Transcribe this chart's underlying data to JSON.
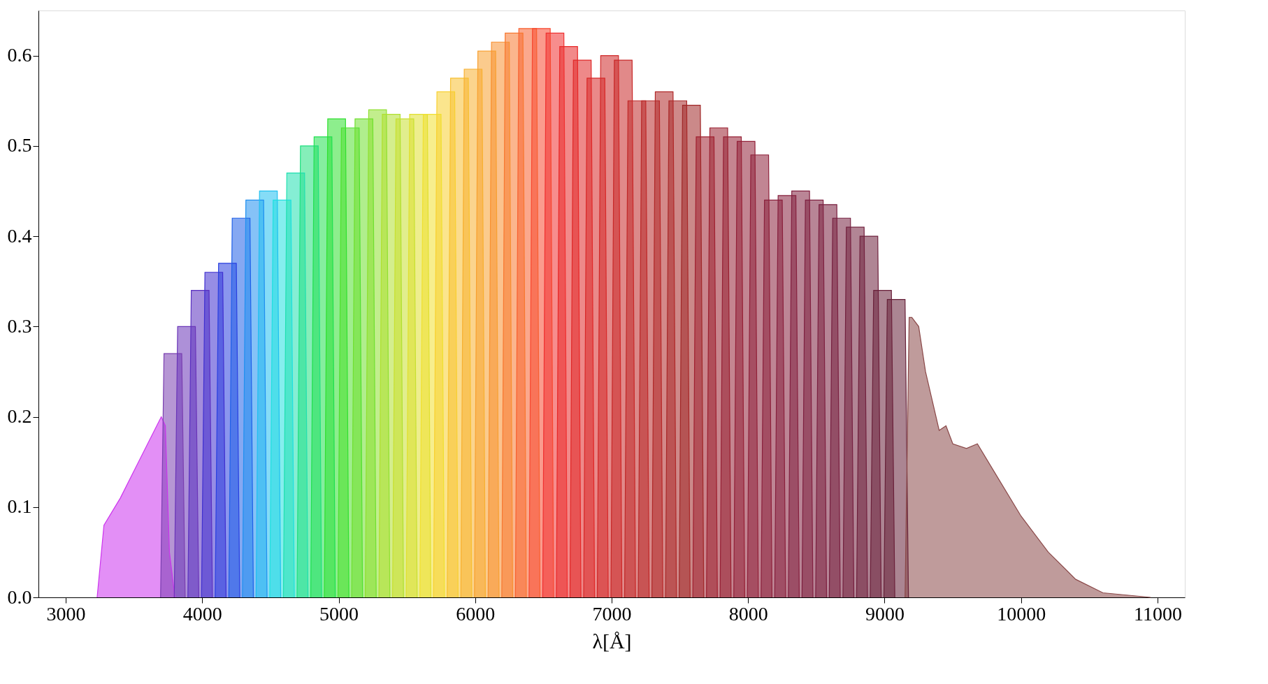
{
  "chart_data": {
    "type": "area",
    "xlabel": "λ[Å]",
    "xlim": [
      2800,
      11200
    ],
    "ylim": [
      0,
      0.65
    ],
    "xticks": [
      3000,
      4000,
      5000,
      6000,
      7000,
      8000,
      9000,
      10000,
      11000
    ],
    "yticks": [
      {
        "value": 0,
        "label": "0.0"
      },
      0.1,
      0.2,
      0.3,
      0.4,
      0.5,
      0.6
    ],
    "grid": false,
    "legend": false,
    "series": [
      {
        "color": "#cc33ee",
        "x": [
          3230,
          3280,
          3400,
          3500,
          3600,
          3700,
          3730,
          3760,
          3800
        ],
        "values": [
          0,
          0.08,
          0.11,
          0.14,
          0.17,
          0.2,
          0.19,
          0.05,
          0
        ]
      },
      {
        "color": "#7a3fb0",
        "x": [
          3695,
          3720,
          3850,
          3875
        ],
        "values": [
          0,
          0.27,
          0.27,
          0
        ]
      },
      {
        "color": "#6a35b8",
        "x": [
          3795,
          3820,
          3950,
          3975
        ],
        "values": [
          0,
          0.3,
          0.3,
          0
        ]
      },
      {
        "color": "#5a30c0",
        "x": [
          3895,
          3920,
          4050,
          4075
        ],
        "values": [
          0,
          0.34,
          0.34,
          0
        ]
      },
      {
        "color": "#4030d0",
        "x": [
          3995,
          4020,
          4150,
          4175
        ],
        "values": [
          0,
          0.36,
          0.36,
          0
        ]
      },
      {
        "color": "#2a40e0",
        "x": [
          4095,
          4120,
          4250,
          4275
        ],
        "values": [
          0,
          0.37,
          0.37,
          0
        ]
      },
      {
        "color": "#2060e8",
        "x": [
          4195,
          4220,
          4350,
          4375
        ],
        "values": [
          0,
          0.42,
          0.42,
          0
        ]
      },
      {
        "color": "#2090f0",
        "x": [
          4295,
          4320,
          4450,
          4475
        ],
        "values": [
          0,
          0.44,
          0.44,
          0
        ]
      },
      {
        "color": "#20c0f0",
        "x": [
          4395,
          4420,
          4550,
          4575
        ],
        "values": [
          0,
          0.45,
          0.45,
          0
        ]
      },
      {
        "color": "#20e0e0",
        "x": [
          4495,
          4520,
          4650,
          4675
        ],
        "values": [
          0,
          0.44,
          0.44,
          0
        ]
      },
      {
        "color": "#20e0b0",
        "x": [
          4595,
          4620,
          4750,
          4775
        ],
        "values": [
          0,
          0.47,
          0.47,
          0
        ]
      },
      {
        "color": "#20e080",
        "x": [
          4695,
          4720,
          4850,
          4875
        ],
        "values": [
          0,
          0.5,
          0.5,
          0
        ]
      },
      {
        "color": "#20e050",
        "x": [
          4795,
          4820,
          4950,
          4975
        ],
        "values": [
          0,
          0.51,
          0.51,
          0
        ]
      },
      {
        "color": "#30e030",
        "x": [
          4895,
          4920,
          5050,
          5075
        ],
        "values": [
          0,
          0.53,
          0.53,
          0
        ]
      },
      {
        "color": "#50e030",
        "x": [
          4995,
          5020,
          5150,
          5175
        ],
        "values": [
          0,
          0.52,
          0.52,
          0
        ]
      },
      {
        "color": "#70e030",
        "x": [
          5095,
          5120,
          5250,
          5275
        ],
        "values": [
          0,
          0.53,
          0.53,
          0
        ]
      },
      {
        "color": "#90e030",
        "x": [
          5195,
          5220,
          5350,
          5375
        ],
        "values": [
          0,
          0.54,
          0.54,
          0
        ]
      },
      {
        "color": "#b0e030",
        "x": [
          5295,
          5320,
          5450,
          5475
        ],
        "values": [
          0,
          0.535,
          0.535,
          0
        ]
      },
      {
        "color": "#c8e030",
        "x": [
          5395,
          5420,
          5550,
          5575
        ],
        "values": [
          0,
          0.53,
          0.53,
          0
        ]
      },
      {
        "color": "#e0e030",
        "x": [
          5495,
          5520,
          5650,
          5675
        ],
        "values": [
          0,
          0.535,
          0.535,
          0
        ]
      },
      {
        "color": "#f0e030",
        "x": [
          5595,
          5620,
          5750,
          5775
        ],
        "values": [
          0,
          0.535,
          0.535,
          0
        ]
      },
      {
        "color": "#f8d030",
        "x": [
          5695,
          5720,
          5850,
          5875
        ],
        "values": [
          0,
          0.56,
          0.56,
          0
        ]
      },
      {
        "color": "#f8c030",
        "x": [
          5795,
          5820,
          5950,
          5975
        ],
        "values": [
          0,
          0.575,
          0.575,
          0
        ]
      },
      {
        "color": "#f8b030",
        "x": [
          5895,
          5920,
          6050,
          6075
        ],
        "values": [
          0,
          0.585,
          0.585,
          0
        ]
      },
      {
        "color": "#f8a030",
        "x": [
          5995,
          6020,
          6150,
          6175
        ],
        "values": [
          0,
          0.605,
          0.605,
          0
        ]
      },
      {
        "color": "#f89030",
        "x": [
          6095,
          6120,
          6250,
          6275
        ],
        "values": [
          0,
          0.615,
          0.615,
          0
        ]
      },
      {
        "color": "#f87830",
        "x": [
          6195,
          6220,
          6350,
          6375
        ],
        "values": [
          0,
          0.625,
          0.625,
          0
        ]
      },
      {
        "color": "#f86030",
        "x": [
          6295,
          6320,
          6450,
          6475
        ],
        "values": [
          0,
          0.63,
          0.63,
          0
        ]
      },
      {
        "color": "#f84830",
        "x": [
          6395,
          6420,
          6550,
          6575
        ],
        "values": [
          0,
          0.63,
          0.63,
          0
        ]
      },
      {
        "color": "#f03030",
        "x": [
          6495,
          6520,
          6650,
          6675
        ],
        "values": [
          0,
          0.625,
          0.625,
          0
        ]
      },
      {
        "color": "#e82828",
        "x": [
          6595,
          6620,
          6750,
          6775
        ],
        "values": [
          0,
          0.61,
          0.61,
          0
        ]
      },
      {
        "color": "#e02828",
        "x": [
          6695,
          6720,
          6850,
          6875
        ],
        "values": [
          0,
          0.595,
          0.595,
          0
        ]
      },
      {
        "color": "#d82828",
        "x": [
          6795,
          6820,
          6950,
          6975
        ],
        "values": [
          0,
          0.575,
          0.575,
          0
        ]
      },
      {
        "color": "#d02828",
        "x": [
          6895,
          6920,
          7050,
          7075
        ],
        "values": [
          0,
          0.6,
          0.6,
          0
        ]
      },
      {
        "color": "#c82828",
        "x": [
          6995,
          7020,
          7150,
          7175
        ],
        "values": [
          0,
          0.595,
          0.595,
          0
        ]
      },
      {
        "color": "#c02828",
        "x": [
          7095,
          7120,
          7250,
          7275
        ],
        "values": [
          0,
          0.55,
          0.55,
          0
        ]
      },
      {
        "color": "#b82828",
        "x": [
          7195,
          7220,
          7350,
          7375
        ],
        "values": [
          0,
          0.55,
          0.55,
          0
        ]
      },
      {
        "color": "#b02828",
        "x": [
          7295,
          7320,
          7450,
          7475
        ],
        "values": [
          0,
          0.56,
          0.56,
          0
        ]
      },
      {
        "color": "#a82828",
        "x": [
          7395,
          7420,
          7550,
          7575
        ],
        "values": [
          0,
          0.55,
          0.55,
          0
        ]
      },
      {
        "color": "#a02828",
        "x": [
          7495,
          7520,
          7650,
          7675
        ],
        "values": [
          0,
          0.545,
          0.545,
          0
        ]
      },
      {
        "color": "#a02030",
        "x": [
          7595,
          7620,
          7750,
          7775
        ],
        "values": [
          0,
          0.51,
          0.51,
          0
        ]
      },
      {
        "color": "#9a2030",
        "x": [
          7695,
          7720,
          7850,
          7875
        ],
        "values": [
          0,
          0.52,
          0.52,
          0
        ]
      },
      {
        "color": "#962035",
        "x": [
          7795,
          7820,
          7950,
          7975
        ],
        "values": [
          0,
          0.51,
          0.51,
          0
        ]
      },
      {
        "color": "#922038",
        "x": [
          7895,
          7920,
          8050,
          8075
        ],
        "values": [
          0,
          0.505,
          0.505,
          0
        ]
      },
      {
        "color": "#8e203a",
        "x": [
          7995,
          8020,
          8150,
          8175
        ],
        "values": [
          0,
          0.49,
          0.49,
          0
        ]
      },
      {
        "color": "#8a203c",
        "x": [
          8095,
          8120,
          8250,
          8275
        ],
        "values": [
          0,
          0.44,
          0.44,
          0
        ]
      },
      {
        "color": "#86203e",
        "x": [
          8195,
          8220,
          8350,
          8375
        ],
        "values": [
          0,
          0.445,
          0.445,
          0
        ]
      },
      {
        "color": "#822040",
        "x": [
          8295,
          8320,
          8450,
          8475
        ],
        "values": [
          0,
          0.45,
          0.45,
          0
        ]
      },
      {
        "color": "#7e2040",
        "x": [
          8395,
          8420,
          8550,
          8575
        ],
        "values": [
          0,
          0.44,
          0.44,
          0
        ]
      },
      {
        "color": "#7a2040",
        "x": [
          8495,
          8520,
          8650,
          8675
        ],
        "values": [
          0,
          0.435,
          0.435,
          0
        ]
      },
      {
        "color": "#762040",
        "x": [
          8595,
          8620,
          8750,
          8775
        ],
        "values": [
          0,
          0.42,
          0.42,
          0
        ]
      },
      {
        "color": "#72203e",
        "x": [
          8695,
          8720,
          8850,
          8875
        ],
        "values": [
          0,
          0.41,
          0.41,
          0
        ]
      },
      {
        "color": "#6e203c",
        "x": [
          8795,
          8820,
          8950,
          8975
        ],
        "values": [
          0,
          0.4,
          0.4,
          0
        ]
      },
      {
        "color": "#6a203a",
        "x": [
          8895,
          8920,
          9050,
          9075
        ],
        "values": [
          0,
          0.34,
          0.34,
          0
        ]
      },
      {
        "color": "#662038",
        "x": [
          8995,
          9020,
          9150,
          9175
        ],
        "values": [
          0,
          0.33,
          0.33,
          0
        ]
      },
      {
        "color": "#8a4848",
        "x": [
          9150,
          9180,
          9200,
          9250,
          9300,
          9400,
          9450,
          9500,
          9600,
          9680,
          9800,
          10000,
          10200,
          10400,
          10600,
          10950
        ],
        "values": [
          0,
          0.31,
          0.31,
          0.3,
          0.25,
          0.185,
          0.19,
          0.17,
          0.165,
          0.17,
          0.14,
          0.09,
          0.05,
          0.02,
          0.005,
          0
        ]
      }
    ]
  }
}
